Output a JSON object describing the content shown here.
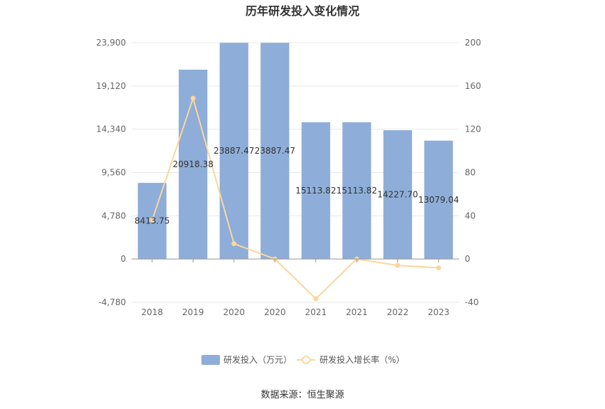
{
  "chart_data": {
    "type": "bar",
    "title": "历年研发投入变化情况",
    "categories": [
      "2018",
      "2019",
      "2020",
      "2020",
      "2021",
      "2021",
      "2022",
      "2023"
    ],
    "series": [
      {
        "name": "研发投入（万元）",
        "type": "bar",
        "axis": "left",
        "values": [
          8413.75,
          20918.38,
          23887.47,
          23887.47,
          15113.82,
          15113.82,
          14227.7,
          13079.04
        ],
        "labels": [
          "8413.75",
          "20918.38",
          "23887.47",
          "23887.47",
          "15113.82",
          "15113.82",
          "14227.70",
          "13079.04"
        ]
      },
      {
        "name": "研发投入增长率（%）",
        "type": "line",
        "axis": "right",
        "values": [
          36,
          148.6,
          14.2,
          0,
          -36.7,
          0,
          -5.9,
          -8.1
        ]
      }
    ],
    "y_left": {
      "min": -4780,
      "max": 23900,
      "ticks": [
        "-4,780",
        "0",
        "4,780",
        "9,560",
        "14,340",
        "19,120",
        "23,900"
      ]
    },
    "y_right": {
      "min": -40,
      "max": 200,
      "ticks": [
        "-40",
        "0",
        "40",
        "80",
        "120",
        "160",
        "200"
      ]
    },
    "grid": true,
    "legend_position": "bottom",
    "colors": {
      "bar": "#8eadd9",
      "line": "#fad79b",
      "grid": "#e8e8e8",
      "axis": "#999999"
    }
  },
  "source": "数据来源：恒生聚源"
}
